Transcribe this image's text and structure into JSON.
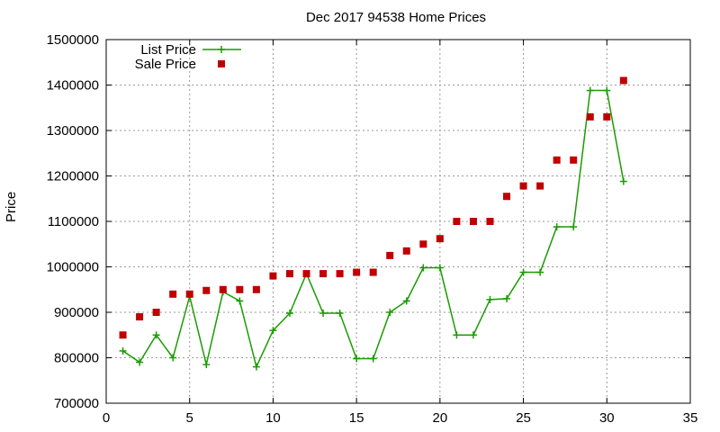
{
  "chart_data": {
    "type": "line",
    "title": "Dec 2017 94538 Home Prices",
    "xlabel": "",
    "ylabel": "Price",
    "xlim": [
      0,
      35
    ],
    "ylim": [
      700000,
      1500000
    ],
    "xticks": [
      0,
      5,
      10,
      15,
      20,
      25,
      30,
      35
    ],
    "yticks": [
      700000,
      800000,
      900000,
      1000000,
      1100000,
      1200000,
      1300000,
      1400000,
      1500000
    ],
    "grid": true,
    "legend_position": "top-left",
    "series": [
      {
        "name": "List Price",
        "style": "line+cross",
        "color": "#1a9c00",
        "x": [
          1,
          2,
          3,
          4,
          5,
          6,
          7,
          8,
          9,
          10,
          11,
          12,
          13,
          14,
          15,
          16,
          17,
          18,
          19,
          20,
          21,
          22,
          23,
          24,
          25,
          26,
          27,
          28,
          29,
          30,
          31
        ],
        "y": [
          815000,
          790000,
          850000,
          800000,
          935000,
          785000,
          945000,
          925000,
          780000,
          860000,
          898000,
          985000,
          898000,
          898000,
          798000,
          798000,
          900000,
          925000,
          998000,
          998000,
          850000,
          850000,
          928000,
          930000,
          988000,
          988000,
          1088000,
          1088000,
          1388000,
          1388000,
          1188000
        ]
      },
      {
        "name": "Sale Price",
        "style": "square",
        "color": "#c00000",
        "x": [
          1,
          2,
          3,
          4,
          5,
          6,
          7,
          8,
          9,
          10,
          11,
          12,
          13,
          14,
          15,
          16,
          17,
          18,
          19,
          20,
          21,
          22,
          23,
          24,
          25,
          26,
          27,
          28,
          29,
          30,
          31
        ],
        "y": [
          850000,
          890000,
          900000,
          940000,
          940000,
          948000,
          950000,
          950000,
          950000,
          980000,
          985000,
          985000,
          985000,
          985000,
          988000,
          988000,
          1025000,
          1035000,
          1050000,
          1062000,
          1100000,
          1100000,
          1100000,
          1155000,
          1178000,
          1178000,
          1235000,
          1235000,
          1330000,
          1330000,
          1410000
        ]
      }
    ]
  }
}
